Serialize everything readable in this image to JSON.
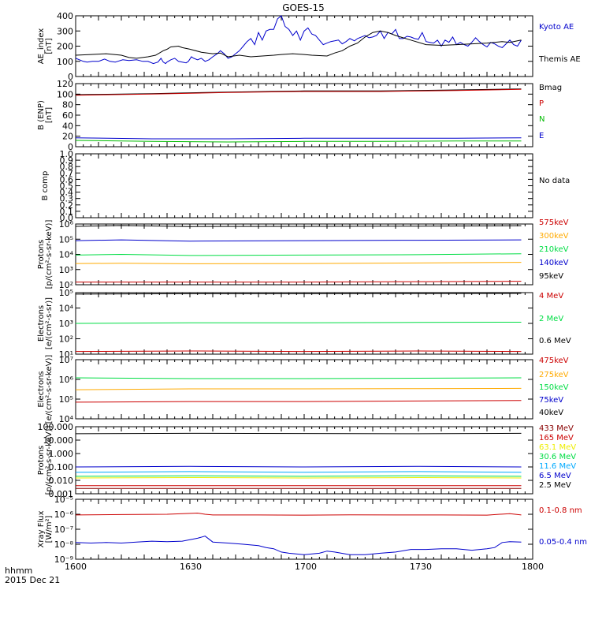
{
  "title": "GOES-15",
  "xaxis": {
    "ticks": [
      "1600",
      "1630",
      "1700",
      "1730",
      "1800"
    ],
    "label_line1": "hhmm",
    "label_line2": "2015 Dec 21"
  },
  "chart_data": [
    {
      "type": "line",
      "panel": "ae",
      "title": "",
      "ylabel": [
        "AE_index",
        "[nT]"
      ],
      "scale": "linear",
      "ylim": [
        0,
        400
      ],
      "yticks": [
        0,
        100,
        200,
        300,
        400
      ],
      "ytick_labels": [
        "0",
        "100",
        "200",
        "300",
        "400"
      ],
      "series": [
        {
          "name": "Kyoto AE",
          "color": "#0000cc",
          "x": [
            0,
            5,
            10,
            15,
            22,
            30,
            38,
            45,
            52,
            55,
            62,
            70,
            80,
            88,
            95,
            102,
            108,
            112,
            115,
            118,
            120,
            125,
            130,
            135,
            140,
            145,
            148,
            152,
            155,
            160,
            165,
            170,
            175,
            180,
            186,
            190,
            195,
            200,
            205,
            210,
            215,
            220,
            225,
            230,
            235,
            240,
            245,
            250,
            255,
            260,
            265,
            270,
            275,
            280,
            285,
            290,
            295,
            300,
            305,
            310,
            315,
            320,
            325,
            330,
            335,
            340,
            345,
            350,
            355,
            360,
            366,
            370,
            375,
            380,
            385,
            390,
            395,
            400,
            405,
            410,
            415,
            420,
            425,
            430,
            435,
            440,
            445,
            450,
            455,
            460,
            465,
            470,
            475,
            480,
            485,
            490,
            495,
            500,
            505,
            510,
            515,
            520,
            525,
            530,
            535,
            540,
            545,
            550,
            555,
            560,
            565,
            570,
            575,
            580,
            585
          ],
          "values": [
            120,
            110,
            100,
            95,
            100,
            100,
            115,
            100,
            95,
            100,
            110,
            105,
            110,
            100,
            100,
            85,
            95,
            120,
            95,
            85,
            95,
            110,
            120,
            100,
            95,
            90,
            100,
            130,
            120,
            110,
            120,
            100,
            110,
            130,
            150,
            170,
            150,
            120,
            130,
            150,
            170,
            200,
            230,
            250,
            210,
            290,
            240,
            300,
            310,
            310,
            380,
            400,
            330,
            310,
            270,
            300,
            240,
            300,
            320,
            280,
            270,
            240,
            210,
            220,
            230,
            235,
            240,
            215,
            230,
            250,
            235,
            250,
            260,
            270,
            255,
            260,
            270,
            300,
            250,
            290,
            280,
            310,
            250,
            250,
            265,
            260,
            250,
            245,
            290,
            230,
            225,
            220,
            240,
            200,
            240,
            225,
            260,
            210,
            225,
            210,
            200,
            225,
            255,
            230,
            210,
            195,
            225,
            215,
            200,
            190,
            215,
            240,
            210,
            200,
            240
          ]
        },
        {
          "name": "Themis AE",
          "color": "#000000",
          "x": [
            0,
            20,
            40,
            60,
            70,
            80,
            95,
            105,
            115,
            120,
            125,
            135,
            140,
            150,
            165,
            180,
            190,
            200,
            215,
            230,
            245,
            260,
            270,
            285,
            300,
            310,
            330,
            340,
            350,
            360,
            370,
            380,
            390,
            400,
            410,
            420,
            440,
            460,
            480,
            500,
            520,
            540,
            560,
            570,
            580,
            585
          ],
          "values": [
            140,
            145,
            150,
            140,
            125,
            120,
            130,
            140,
            170,
            180,
            195,
            200,
            190,
            180,
            160,
            150,
            155,
            130,
            140,
            130,
            135,
            140,
            145,
            150,
            145,
            140,
            135,
            155,
            170,
            200,
            220,
            260,
            290,
            300,
            290,
            270,
            240,
            210,
            205,
            210,
            215,
            220,
            230,
            225,
            235,
            240
          ]
        }
      ]
    },
    {
      "type": "line",
      "panel": "bfield",
      "title": "",
      "ylabel": [
        "B (ENP)",
        "[nT]"
      ],
      "scale": "linear",
      "ylim": [
        0,
        120
      ],
      "yticks": [
        0,
        20,
        40,
        60,
        80,
        100,
        120
      ],
      "ytick_labels": [
        "0",
        "20",
        "40",
        "60",
        "80",
        "100",
        "120"
      ],
      "series": [
        {
          "name": "Bmag",
          "color": "#000000",
          "x": [
            0,
            100,
            200,
            300,
            400,
            500,
            585
          ],
          "values": [
            99,
            101,
            104,
            106,
            106,
            108,
            110
          ]
        },
        {
          "name": "P",
          "color": "#cc0000",
          "x": [
            0,
            100,
            200,
            300,
            400,
            500,
            585
          ],
          "values": [
            98,
            100,
            103,
            105,
            105,
            107,
            109
          ]
        },
        {
          "name": "N",
          "color": "#00bb00",
          "x": [
            0,
            100,
            200,
            300,
            400,
            500,
            585
          ],
          "values": [
            12,
            10,
            9,
            10,
            10,
            11,
            11
          ]
        },
        {
          "name": "E",
          "color": "#0000cc",
          "x": [
            0,
            100,
            200,
            300,
            400,
            500,
            585
          ],
          "values": [
            17,
            15,
            15,
            16,
            16,
            16,
            17
          ]
        }
      ]
    },
    {
      "type": "line",
      "panel": "bcomp",
      "title": "",
      "ylabel": [
        "B comp"
      ],
      "scale": "linear",
      "ylim": [
        0,
        1
      ],
      "yticks": [
        0,
        0.1,
        0.2,
        0.3,
        0.4,
        0.5,
        0.6,
        0.7,
        0.8,
        0.9,
        1.0
      ],
      "ytick_labels": [
        "0.0",
        "0.1",
        "0.2",
        "0.3",
        "0.4",
        "0.5",
        "0.6",
        "0.7",
        "0.8",
        "0.9",
        "1.0"
      ],
      "annotation": "No data",
      "series": []
    },
    {
      "type": "line",
      "panel": "protons1",
      "title": "",
      "ylabel": [
        "Protons",
        "[p/(cm²-s-sr-keV)]"
      ],
      "scale": "log",
      "ylim": [
        100,
        1000000
      ],
      "yticks": [
        100,
        1000,
        10000,
        100000,
        1000000
      ],
      "ytick_labels": [
        "10²",
        "10³",
        "10⁴",
        "10⁵",
        "10⁶"
      ],
      "series": [
        {
          "name": "575keV",
          "color": "#cc0000",
          "x": [
            0,
            150,
            300,
            450,
            585
          ],
          "values": [
            150,
            150,
            150,
            160,
            170
          ]
        },
        {
          "name": "300keV",
          "color": "#ffaa00",
          "x": [
            0,
            60,
            150,
            300,
            450,
            585
          ],
          "values": [
            2500,
            2600,
            2400,
            2500,
            2700,
            3000
          ]
        },
        {
          "name": "210keV",
          "color": "#00dd44",
          "x": [
            0,
            60,
            150,
            300,
            450,
            585
          ],
          "values": [
            9000,
            10000,
            8500,
            9000,
            9500,
            11000
          ]
        },
        {
          "name": "140keV",
          "color": "#0000cc",
          "x": [
            0,
            60,
            150,
            300,
            450,
            585
          ],
          "values": [
            80000,
            90000,
            75000,
            80000,
            85000,
            90000
          ]
        },
        {
          "name": "95keV",
          "color": "#000000",
          "x": [
            0,
            60,
            150,
            300,
            450,
            585
          ],
          "values": [
            700000,
            800000,
            680000,
            700000,
            720000,
            780000
          ]
        }
      ]
    },
    {
      "type": "line",
      "panel": "electrons1",
      "title": "",
      "ylabel": [
        "Electrons",
        "[e/(cm²-s-sr)]"
      ],
      "scale": "log",
      "ylim": [
        10,
        100000
      ],
      "yticks": [
        10,
        100,
        1000,
        10000,
        100000
      ],
      "ytick_labels": [
        "10¹",
        "10²",
        "10³",
        "10⁴",
        "10⁵"
      ],
      "series": [
        {
          "name": "4 MeV",
          "color": "#cc0000",
          "x": [
            0,
            150,
            300,
            450,
            585
          ],
          "values": [
            15,
            16,
            15,
            16,
            15
          ]
        },
        {
          "name": "2 MeV",
          "color": "#00dd44",
          "x": [
            0,
            150,
            300,
            450,
            585
          ],
          "values": [
            1000,
            1100,
            1100,
            1150,
            1200
          ]
        },
        {
          "name": "0.6 MeV",
          "color": "#000000",
          "x": [
            0,
            150,
            300,
            450,
            585
          ],
          "values": [
            80000,
            85000,
            85000,
            88000,
            90000
          ]
        }
      ]
    },
    {
      "type": "line",
      "panel": "electrons2",
      "title": "",
      "ylabel": [
        "Electrons",
        "[e/(cm²-s-sr-keV)]"
      ],
      "scale": "log",
      "ylim": [
        10000,
        10000000
      ],
      "yticks": [
        10000,
        100000,
        1000000,
        10000000
      ],
      "ytick_labels": [
        "10⁴",
        "10⁵",
        "10⁶",
        "10⁷"
      ],
      "series": [
        {
          "name": "475keV",
          "color": "#cc0000",
          "x": [
            0,
            150,
            300,
            450,
            585
          ],
          "values": [
            70000,
            75000,
            75000,
            80000,
            85000
          ]
        },
        {
          "name": "275keV",
          "color": "#ffaa00",
          "x": [
            0,
            150,
            300,
            450,
            585
          ],
          "values": [
            300000,
            330000,
            330000,
            340000,
            350000
          ]
        },
        {
          "name": "150keV",
          "color": "#00dd44",
          "x": [
            0,
            150,
            300,
            450,
            585
          ],
          "values": [
            1200000,
            1100000,
            1100000,
            1150000,
            1200000
          ]
        },
        {
          "name": "75keV",
          "color": "#0000cc",
          "x": [],
          "values": []
        },
        {
          "name": "40keV",
          "color": "#000000",
          "x": [],
          "values": []
        }
      ]
    },
    {
      "type": "line",
      "panel": "protons2",
      "title": "",
      "ylabel": [
        "Protons",
        "[p/(cm²-s-sr-keV)]"
      ],
      "scale": "log",
      "ylim": [
        0.001,
        100
      ],
      "yticks": [
        0.001,
        0.01,
        0.1,
        1,
        10,
        100
      ],
      "ytick_labels": [
        "0.001",
        "0.010",
        "0.100",
        "1.000",
        "10.000",
        "100.000"
      ],
      "series": [
        {
          "name": "433 MeV",
          "color": "#880000",
          "x": [
            0,
            150,
            300,
            450,
            585
          ],
          "values": [
            0.0025,
            0.0025,
            0.0025,
            0.0025,
            0.0025
          ]
        },
        {
          "name": "165 MeV",
          "color": "#cc0000",
          "x": [
            0,
            150,
            300,
            450,
            585
          ],
          "values": [
            0.004,
            0.004,
            0.004,
            0.004,
            0.004
          ]
        },
        {
          "name": "63.1 MeV",
          "color": "#eeee00",
          "x": [
            0,
            150,
            300,
            450,
            585
          ],
          "values": [
            0.015,
            0.016,
            0.015,
            0.016,
            0.015
          ]
        },
        {
          "name": "30.6 MeV",
          "color": "#00dd44",
          "x": [
            0,
            150,
            300,
            450,
            585
          ],
          "values": [
            0.02,
            0.022,
            0.02,
            0.022,
            0.02
          ]
        },
        {
          "name": "11.6 MeV",
          "color": "#00aaff",
          "x": [
            0,
            150,
            300,
            450,
            585
          ],
          "values": [
            0.04,
            0.045,
            0.04,
            0.045,
            0.04
          ]
        },
        {
          "name": "6.5 MeV",
          "color": "#0000cc",
          "x": [
            0,
            150,
            300,
            450,
            585
          ],
          "values": [
            0.1,
            0.11,
            0.1,
            0.11,
            0.1
          ]
        },
        {
          "name": "2.5 MeV",
          "color": "#000000",
          "x": [
            0,
            150,
            300,
            450,
            585
          ],
          "values": [
            30,
            32,
            31,
            30,
            32
          ]
        }
      ]
    },
    {
      "type": "line",
      "panel": "xray",
      "title": "",
      "ylabel": [
        "Xray Flux",
        "[W/m²]"
      ],
      "scale": "log",
      "ylim": [
        1e-09,
        1e-05
      ],
      "yticks": [
        1e-09,
        1e-08,
        1e-07,
        1e-06,
        1e-05
      ],
      "ytick_labels": [
        "10⁻⁹",
        "10⁻⁸",
        "10⁻⁷",
        "10⁻⁶",
        "10⁻⁵"
      ],
      "series": [
        {
          "name": "0.1-0.8 nm",
          "color": "#cc0000",
          "x": [
            0,
            60,
            120,
            160,
            170,
            180,
            240,
            300,
            360,
            420,
            480,
            540,
            570,
            585
          ],
          "values": [
            9e-07,
            9.5e-07,
            1e-06,
            1.2e-06,
            1e-06,
            9e-07,
            9e-07,
            8.8e-07,
            9.2e-07,
            9e-07,
            9e-07,
            8.8e-07,
            1.1e-06,
            9e-07
          ]
        },
        {
          "name": "0.05-0.4 nm",
          "color": "#0000cc",
          "x": [
            0,
            20,
            40,
            60,
            80,
            100,
            120,
            140,
            160,
            170,
            180,
            200,
            220,
            240,
            250,
            260,
            270,
            280,
            300,
            320,
            330,
            340,
            360,
            380,
            400,
            420,
            440,
            460,
            480,
            500,
            520,
            540,
            550,
            560,
            570,
            585
          ],
          "values": [
            1.3e-08,
            1.2e-08,
            1.3e-08,
            1.2e-08,
            1.4e-08,
            1.6e-08,
            1.5e-08,
            1.6e-08,
            2.5e-08,
            3.5e-08,
            1.4e-08,
            1.2e-08,
            1e-08,
            8e-09,
            6e-09,
            5e-09,
            3e-09,
            2.5e-09,
            2e-09,
            2.5e-09,
            3.5e-09,
            3e-09,
            2e-09,
            2e-09,
            2.5e-09,
            3e-09,
            4.5e-09,
            4.5e-09,
            5e-09,
            5e-09,
            4e-09,
            5e-09,
            6e-09,
            1.3e-08,
            1.5e-08,
            1.4e-08
          ]
        }
      ]
    }
  ]
}
